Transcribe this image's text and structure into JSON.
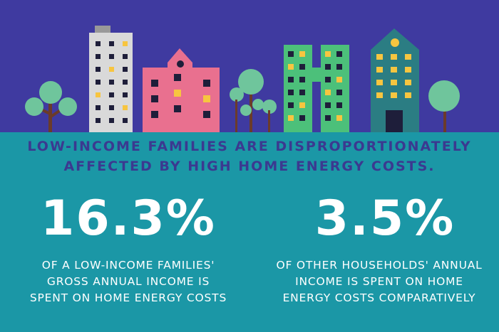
{
  "headline": {
    "lines": [
      "LOW-INCOME FAMILIES ARE DISPROPORTIONATELY",
      "AFFECTED BY HIGH HOME ENERGY COSTS."
    ]
  },
  "stats": [
    {
      "value": "16.3%",
      "description": [
        "OF A LOW-INCOME FAMILIES'",
        "GROSS ANNUAL INCOME IS",
        "SPENT ON HOME ENERGY COSTS"
      ]
    },
    {
      "value": "3.5%",
      "description": [
        "OF OTHER HOUSEHOLDS' ANNUAL",
        "INCOME IS SPENT ON HOME",
        "ENERGY COSTS COMPARATIVELY"
      ]
    }
  ]
}
